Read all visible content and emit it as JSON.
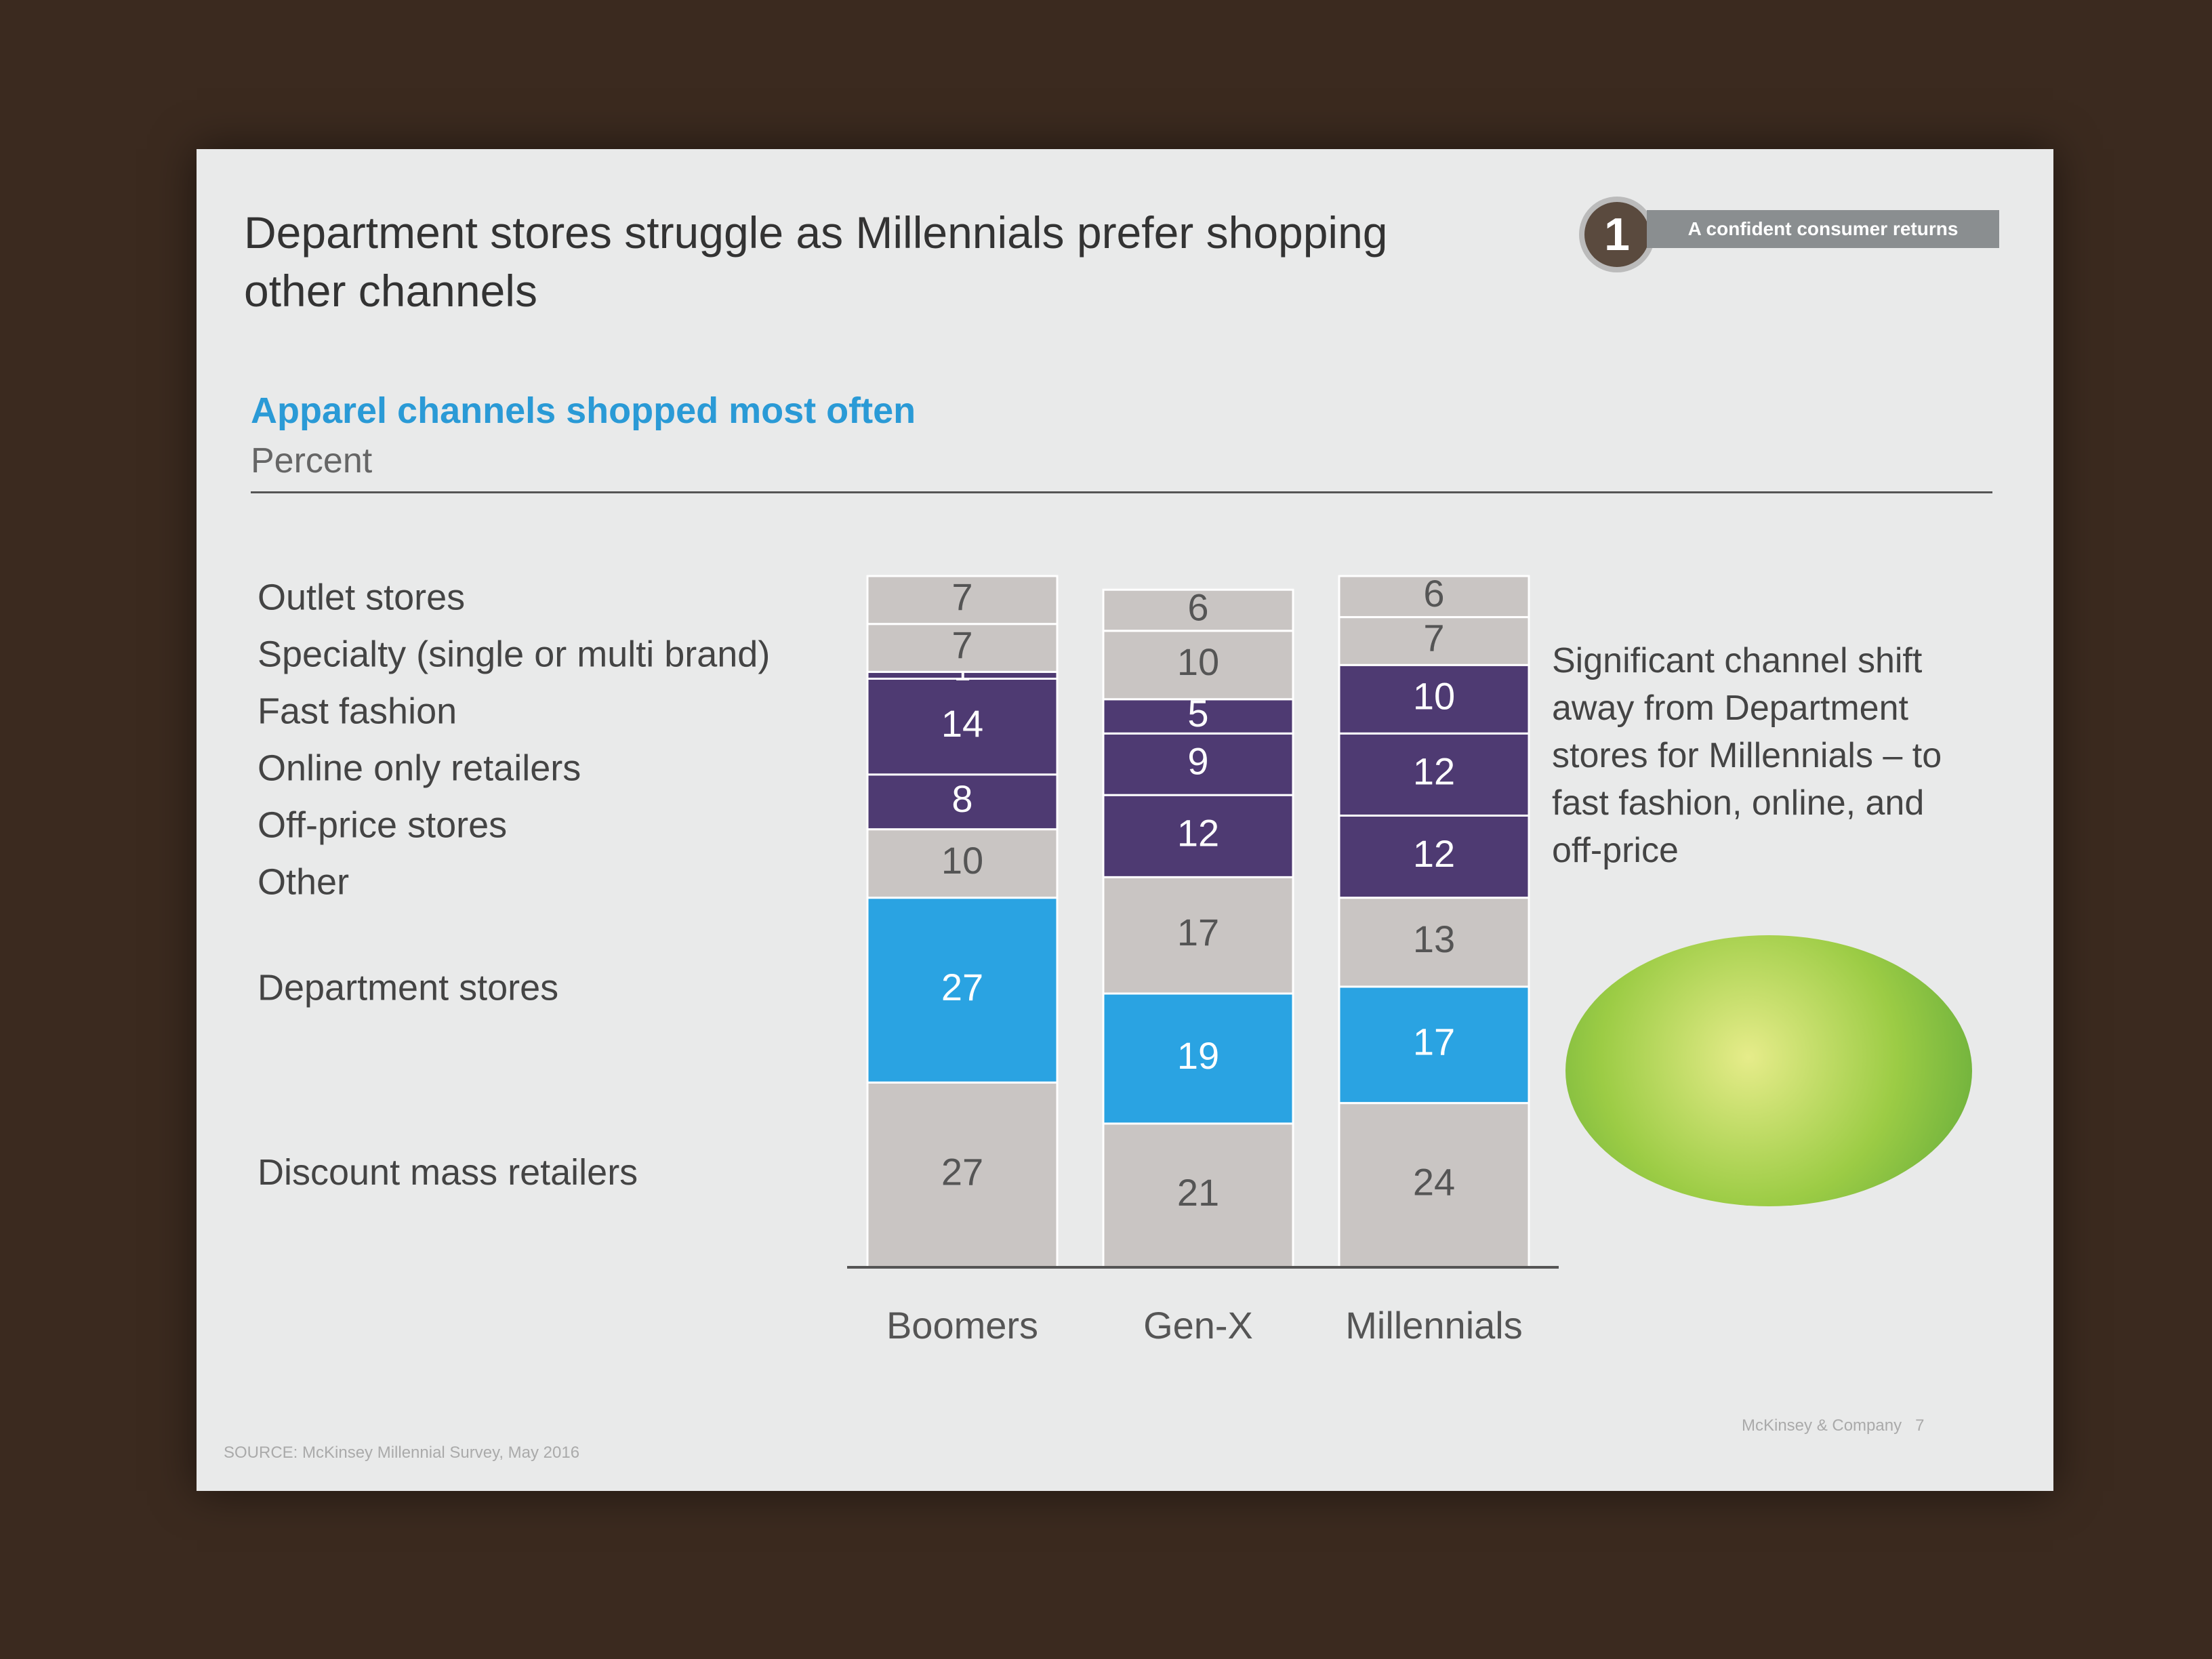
{
  "chart_data": {
    "type": "stacked_bar",
    "title": "Department stores struggle as Millennials prefer shopping other channels",
    "subtitle": "Apparel channels shopped most often",
    "unit_label": "Percent",
    "categories": [
      "Boomers",
      "Gen-X",
      "Millennials"
    ],
    "series": [
      {
        "name": "Discount mass retailers",
        "color": "#c9c5c3",
        "text_color": "#555555",
        "values": [
          27,
          21,
          24
        ]
      },
      {
        "name": "Department stores",
        "color": "#2aa3e2",
        "text_color": "#ffffff",
        "values": [
          27,
          19,
          17
        ]
      },
      {
        "name": "Other",
        "color": "#c9c5c3",
        "text_color": "#555555",
        "values": [
          10,
          17,
          13
        ]
      },
      {
        "name": "Off-price stores",
        "color": "#4e3a72",
        "text_color": "#ffffff",
        "values": [
          8,
          12,
          12
        ]
      },
      {
        "name": "Online only retailers",
        "color": "#4e3a72",
        "text_color": "#ffffff",
        "values": [
          14,
          9,
          12
        ]
      },
      {
        "name": "Fast fashion",
        "color": "#4e3a72",
        "text_color": "#ffffff",
        "values": [
          1,
          5,
          10
        ]
      },
      {
        "name": "Specialty (single or multi brand)",
        "color": "#c9c5c3",
        "text_color": "#555555",
        "values": [
          7,
          10,
          7
        ]
      },
      {
        "name": "Outlet stores",
        "color": "#c9c5c3",
        "text_color": "#555555",
        "values": [
          7,
          6,
          6
        ]
      }
    ]
  },
  "badge": {
    "number": "1",
    "text": "A confident consumer returns"
  },
  "note": "Significant channel shift away from Department stores for Millennials – to fast fashion, online, and off-price",
  "source": "SOURCE: McKinsey Millennial Survey, May 2016",
  "footer": {
    "company": "McKinsey & Company",
    "page": "7"
  }
}
